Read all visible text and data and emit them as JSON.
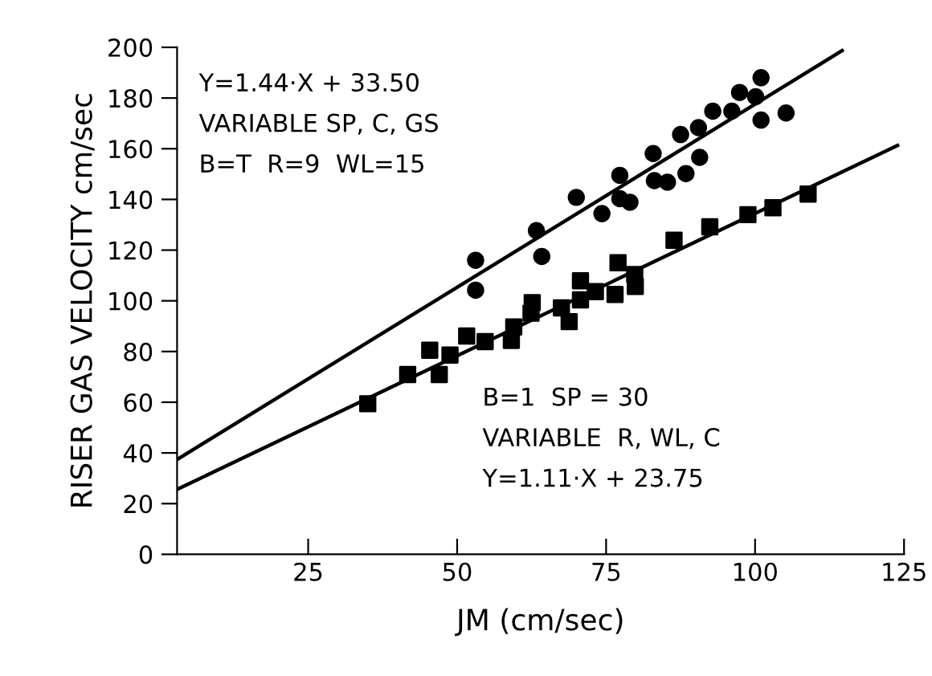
{
  "chart_data": {
    "type": "scatter",
    "xlabel": "JM (cm/sec)",
    "ylabel": "RISER GAS VELOCITY cm/sec",
    "xlim": [
      3,
      125
    ],
    "xticks": [
      25,
      50,
      75,
      100,
      125
    ],
    "ylim": [
      0,
      200
    ],
    "yticks": [
      0,
      20,
      40,
      60,
      80,
      100,
      120,
      140,
      160,
      180,
      200
    ],
    "grid": false,
    "legend": false,
    "annotations": [
      "Y=1.44·X + 33.50\nVARIABLE SP, C, GS\nB=T  R=9  WL=15",
      "B=1  SP = 30\nVARIABLE  R, WL, C\nY=1.11·X + 23.75"
    ],
    "series": [
      {
        "marker": "circle",
        "color": "#000000",
        "x": [
          53.1,
          53.1,
          63.3,
          64.2,
          70.0,
          74.3,
          77.3,
          77.3,
          79.0,
          82.9,
          83.1,
          85.3,
          87.5,
          88.4,
          90.5,
          90.7,
          92.9,
          96.1,
          97.4,
          100.1,
          101.0,
          101.0,
          105.2
        ],
        "values": [
          116.0,
          104.2,
          127.7,
          117.5,
          140.8,
          134.4,
          149.5,
          140.3,
          138.9,
          158.1,
          147.4,
          146.8,
          165.6,
          150.2,
          168.3,
          156.6,
          174.8,
          174.8,
          182.2,
          180.5,
          188.0,
          171.3,
          174.1
        ]
      },
      {
        "marker": "square",
        "color": "#000000",
        "x": [
          35.0,
          41.7,
          45.4,
          47.0,
          48.8,
          51.6,
          54.7,
          59.5,
          59.1,
          62.6,
          62.4,
          67.5,
          68.8,
          70.7,
          70.7,
          73.2,
          76.5,
          77.0,
          79.9,
          79.8,
          86.4,
          92.4,
          98.8,
          103.0,
          108.9
        ],
        "values": [
          59.4,
          70.9,
          80.5,
          70.9,
          78.6,
          86.1,
          83.9,
          89.7,
          84.4,
          99.3,
          95.1,
          97.2,
          91.8,
          107.9,
          100.4,
          103.6,
          102.5,
          115.0,
          105.7,
          110.4,
          123.9,
          129.2,
          134.0,
          136.7,
          142.1
        ]
      },
      {
        "type": "line",
        "marker": "none",
        "line_style": "solid",
        "color": "#000000",
        "x": [
          3,
          114.6
        ],
        "values": [
          37.4,
          198.7
        ]
      },
      {
        "type": "line",
        "marker": "none",
        "line_style": "solid",
        "color": "#000000",
        "x": [
          3,
          123.9
        ],
        "values": [
          25.6,
          161.3
        ]
      }
    ]
  }
}
